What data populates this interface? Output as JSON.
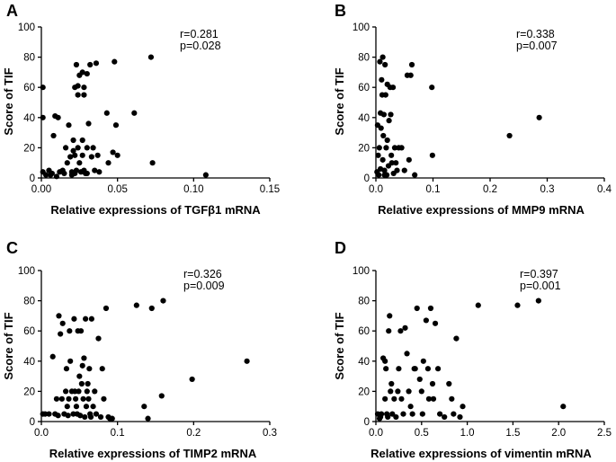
{
  "chart_data": [
    {
      "type": "scatter",
      "panel_label": "A",
      "xlabel": "Relative expressions of TGFβ1 mRNA",
      "ylabel": "Score of TIF",
      "xlim": [
        0,
        0.15
      ],
      "ylim": [
        0,
        100
      ],
      "xticks": [
        "0.00",
        "0.05",
        "0.10",
        "0.15"
      ],
      "xtick_values": [
        0,
        0.05,
        0.1,
        0.15
      ],
      "yticks": [
        "0",
        "20",
        "40",
        "60",
        "80",
        "100"
      ],
      "ytick_values": [
        0,
        20,
        40,
        60,
        80,
        100
      ],
      "annotations": [
        "r=0.281",
        "p=0.028"
      ],
      "points": [
        [
          0.001,
          60
        ],
        [
          0.001,
          40
        ],
        [
          0.001,
          4
        ],
        [
          0.003,
          2
        ],
        [
          0.005,
          5
        ],
        [
          0.006,
          2
        ],
        [
          0.007,
          3
        ],
        [
          0.008,
          28
        ],
        [
          0.009,
          41
        ],
        [
          0.01,
          1
        ],
        [
          0.011,
          40
        ],
        [
          0.012,
          4
        ],
        [
          0.014,
          5
        ],
        [
          0.015,
          3
        ],
        [
          0.016,
          20
        ],
        [
          0.017,
          10
        ],
        [
          0.018,
          35
        ],
        [
          0.019,
          14
        ],
        [
          0.02,
          4
        ],
        [
          0.02,
          2
        ],
        [
          0.021,
          25
        ],
        [
          0.021,
          18
        ],
        [
          0.022,
          60
        ],
        [
          0.022,
          15
        ],
        [
          0.022,
          3
        ],
        [
          0.023,
          75
        ],
        [
          0.023,
          5
        ],
        [
          0.024,
          61
        ],
        [
          0.024,
          55
        ],
        [
          0.024,
          20
        ],
        [
          0.025,
          68
        ],
        [
          0.025,
          10
        ],
        [
          0.026,
          4
        ],
        [
          0.027,
          70
        ],
        [
          0.027,
          25
        ],
        [
          0.027,
          15
        ],
        [
          0.028,
          60
        ],
        [
          0.028,
          55
        ],
        [
          0.028,
          5
        ],
        [
          0.029,
          3
        ],
        [
          0.03,
          69
        ],
        [
          0.03,
          20
        ],
        [
          0.03,
          3
        ],
        [
          0.031,
          36
        ],
        [
          0.032,
          75
        ],
        [
          0.033,
          14
        ],
        [
          0.034,
          20
        ],
        [
          0.035,
          5
        ],
        [
          0.036,
          76
        ],
        [
          0.037,
          15
        ],
        [
          0.038,
          4
        ],
        [
          0.043,
          43
        ],
        [
          0.044,
          10
        ],
        [
          0.047,
          17
        ],
        [
          0.048,
          77
        ],
        [
          0.049,
          35
        ],
        [
          0.05,
          15
        ],
        [
          0.061,
          43
        ],
        [
          0.072,
          80
        ],
        [
          0.073,
          10
        ],
        [
          0.108,
          2
        ]
      ]
    },
    {
      "type": "scatter",
      "panel_label": "B",
      "xlabel": "Relative expressions of MMP9 mRNA",
      "ylabel": "Score of TIF",
      "xlim": [
        0,
        0.4
      ],
      "ylim": [
        0,
        100
      ],
      "xticks": [
        "0.0",
        "0.1",
        "0.2",
        "0.3",
        "0.4"
      ],
      "xtick_values": [
        0,
        0.1,
        0.2,
        0.3,
        0.4
      ],
      "yticks": [
        "0",
        "20",
        "40",
        "60",
        "80",
        "100"
      ],
      "ytick_values": [
        0,
        20,
        40,
        60,
        80,
        100
      ],
      "annotations": [
        "r=0.338",
        "p=0.007"
      ],
      "points": [
        [
          0.002,
          4
        ],
        [
          0.003,
          35
        ],
        [
          0.004,
          15
        ],
        [
          0.005,
          2
        ],
        [
          0.006,
          20
        ],
        [
          0.007,
          77
        ],
        [
          0.008,
          6
        ],
        [
          0.008,
          43
        ],
        [
          0.009,
          33
        ],
        [
          0.01,
          65
        ],
        [
          0.011,
          55
        ],
        [
          0.012,
          80
        ],
        [
          0.012,
          12
        ],
        [
          0.013,
          28
        ],
        [
          0.014,
          42
        ],
        [
          0.015,
          5
        ],
        [
          0.015,
          2
        ],
        [
          0.016,
          75
        ],
        [
          0.017,
          55
        ],
        [
          0.018,
          20
        ],
        [
          0.019,
          2
        ],
        [
          0.02,
          62
        ],
        [
          0.02,
          25
        ],
        [
          0.022,
          8
        ],
        [
          0.023,
          38
        ],
        [
          0.025,
          60
        ],
        [
          0.026,
          42
        ],
        [
          0.027,
          15
        ],
        [
          0.028,
          10
        ],
        [
          0.03,
          60
        ],
        [
          0.031,
          3
        ],
        [
          0.033,
          20
        ],
        [
          0.035,
          10
        ],
        [
          0.037,
          5
        ],
        [
          0.04,
          20
        ],
        [
          0.045,
          20
        ],
        [
          0.05,
          5
        ],
        [
          0.055,
          68
        ],
        [
          0.058,
          12
        ],
        [
          0.061,
          68
        ],
        [
          0.063,
          75
        ],
        [
          0.068,
          2
        ],
        [
          0.098,
          60
        ],
        [
          0.099,
          15
        ],
        [
          0.234,
          28
        ],
        [
          0.286,
          40
        ]
      ]
    },
    {
      "type": "scatter",
      "panel_label": "C",
      "xlabel": "Relative expressions of TIMP2 mRNA",
      "ylabel": "Score of TIF",
      "xlim": [
        0,
        0.3
      ],
      "ylim": [
        0,
        100
      ],
      "xticks": [
        "0.0",
        "0.1",
        "0.2",
        "0.3"
      ],
      "xtick_values": [
        0,
        0.1,
        0.2,
        0.3
      ],
      "yticks": [
        "0",
        "20",
        "40",
        "60",
        "80",
        "100"
      ],
      "ytick_values": [
        0,
        20,
        40,
        60,
        80,
        100
      ],
      "annotations": [
        "r=0.326",
        "p=0.009"
      ],
      "points": [
        [
          0.002,
          5
        ],
        [
          0.005,
          5
        ],
        [
          0.01,
          5
        ],
        [
          0.015,
          43
        ],
        [
          0.018,
          5
        ],
        [
          0.02,
          15
        ],
        [
          0.022,
          4
        ],
        [
          0.023,
          70
        ],
        [
          0.025,
          58
        ],
        [
          0.027,
          15
        ],
        [
          0.028,
          65
        ],
        [
          0.03,
          5
        ],
        [
          0.032,
          20
        ],
        [
          0.033,
          35
        ],
        [
          0.034,
          10
        ],
        [
          0.035,
          4
        ],
        [
          0.036,
          15
        ],
        [
          0.037,
          60
        ],
        [
          0.038,
          40
        ],
        [
          0.04,
          20
        ],
        [
          0.042,
          5
        ],
        [
          0.043,
          68
        ],
        [
          0.044,
          20
        ],
        [
          0.045,
          15
        ],
        [
          0.046,
          10
        ],
        [
          0.047,
          5
        ],
        [
          0.048,
          60
        ],
        [
          0.049,
          20
        ],
        [
          0.05,
          30
        ],
        [
          0.051,
          4
        ],
        [
          0.052,
          60
        ],
        [
          0.053,
          25
        ],
        [
          0.054,
          37
        ],
        [
          0.055,
          15
        ],
        [
          0.056,
          42
        ],
        [
          0.057,
          3
        ],
        [
          0.058,
          68
        ],
        [
          0.059,
          10
        ],
        [
          0.06,
          20
        ],
        [
          0.061,
          25
        ],
        [
          0.062,
          15
        ],
        [
          0.063,
          35
        ],
        [
          0.064,
          5
        ],
        [
          0.065,
          3
        ],
        [
          0.066,
          68
        ],
        [
          0.068,
          10
        ],
        [
          0.07,
          20
        ],
        [
          0.072,
          5
        ],
        [
          0.075,
          55
        ],
        [
          0.078,
          3
        ],
        [
          0.08,
          35
        ],
        [
          0.082,
          15
        ],
        [
          0.085,
          75
        ],
        [
          0.088,
          3
        ],
        [
          0.09,
          2
        ],
        [
          0.093,
          2
        ],
        [
          0.125,
          77
        ],
        [
          0.135,
          10
        ],
        [
          0.14,
          2
        ],
        [
          0.145,
          75
        ],
        [
          0.158,
          17
        ],
        [
          0.16,
          80
        ],
        [
          0.198,
          28
        ],
        [
          0.27,
          40
        ]
      ]
    },
    {
      "type": "scatter",
      "panel_label": "D",
      "xlabel": "Relative expressions of vimentin mRNA",
      "ylabel": "Score of TIF",
      "xlim": [
        0,
        2.5
      ],
      "ylim": [
        0,
        100
      ],
      "xticks": [
        "0.0",
        "0.5",
        "1.0",
        "1.5",
        "2.0",
        "2.5"
      ],
      "xtick_values": [
        0,
        0.5,
        1.0,
        1.5,
        2.0,
        2.5
      ],
      "yticks": [
        "0",
        "20",
        "40",
        "60",
        "80",
        "100"
      ],
      "ytick_values": [
        0,
        20,
        40,
        60,
        80,
        100
      ],
      "annotations": [
        "r=0.397",
        "p=0.001"
      ],
      "points": [
        [
          0.02,
          5
        ],
        [
          0.04,
          2
        ],
        [
          0.05,
          3
        ],
        [
          0.06,
          5
        ],
        [
          0.08,
          42
        ],
        [
          0.1,
          40
        ],
        [
          0.1,
          15
        ],
        [
          0.11,
          35
        ],
        [
          0.12,
          5
        ],
        [
          0.13,
          3
        ],
        [
          0.14,
          60
        ],
        [
          0.15,
          70
        ],
        [
          0.16,
          20
        ],
        [
          0.17,
          25
        ],
        [
          0.18,
          5
        ],
        [
          0.2,
          15
        ],
        [
          0.22,
          3
        ],
        [
          0.24,
          20
        ],
        [
          0.25,
          35
        ],
        [
          0.27,
          60
        ],
        [
          0.28,
          15
        ],
        [
          0.3,
          5
        ],
        [
          0.32,
          62
        ],
        [
          0.34,
          45
        ],
        [
          0.36,
          20
        ],
        [
          0.38,
          10
        ],
        [
          0.4,
          5
        ],
        [
          0.42,
          35
        ],
        [
          0.43,
          35
        ],
        [
          0.45,
          75
        ],
        [
          0.48,
          28
        ],
        [
          0.5,
          20
        ],
        [
          0.51,
          5
        ],
        [
          0.52,
          40
        ],
        [
          0.55,
          67
        ],
        [
          0.57,
          35
        ],
        [
          0.58,
          15
        ],
        [
          0.6,
          75
        ],
        [
          0.62,
          25
        ],
        [
          0.63,
          15
        ],
        [
          0.65,
          65
        ],
        [
          0.68,
          35
        ],
        [
          0.7,
          5
        ],
        [
          0.75,
          3
        ],
        [
          0.8,
          25
        ],
        [
          0.83,
          15
        ],
        [
          0.85,
          5
        ],
        [
          0.88,
          55
        ],
        [
          0.92,
          3
        ],
        [
          0.95,
          10
        ],
        [
          1.12,
          77
        ],
        [
          1.55,
          77
        ],
        [
          1.78,
          80
        ],
        [
          2.05,
          10
        ]
      ]
    }
  ]
}
